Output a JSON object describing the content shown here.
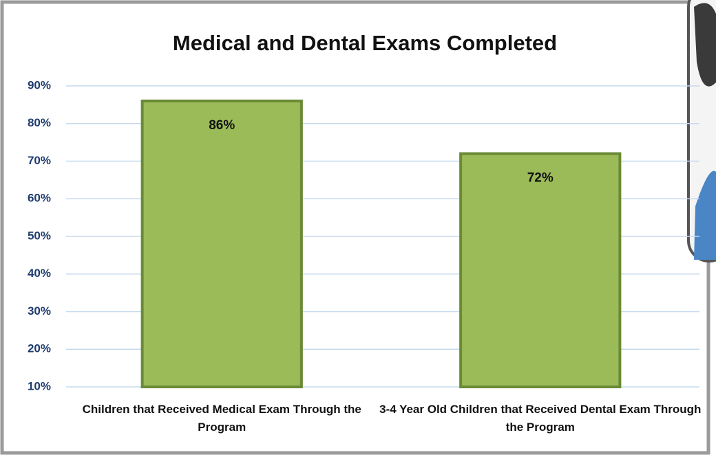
{
  "chart_data": {
    "type": "bar",
    "title": "Medical and Dental Exams Completed",
    "categories": [
      "Children that Received Medical Exam Through the Program",
      "3-4 Year Old Children that Received Dental Exam Through the Program"
    ],
    "values": [
      86,
      72
    ],
    "value_labels": [
      "86%",
      "72%"
    ],
    "color": "#9bbb59",
    "ylim": [
      10,
      90
    ],
    "yticks": [
      {
        "value": 10,
        "label": "10%"
      },
      {
        "value": 20,
        "label": "20%"
      },
      {
        "value": 30,
        "label": "30%"
      },
      {
        "value": 40,
        "label": "40%"
      },
      {
        "value": 50,
        "label": "50%"
      },
      {
        "value": 60,
        "label": "60%"
      },
      {
        "value": 70,
        "label": "70%"
      },
      {
        "value": 80,
        "label": "80%"
      },
      {
        "value": 90,
        "label": "90%"
      }
    ],
    "grid": true
  }
}
